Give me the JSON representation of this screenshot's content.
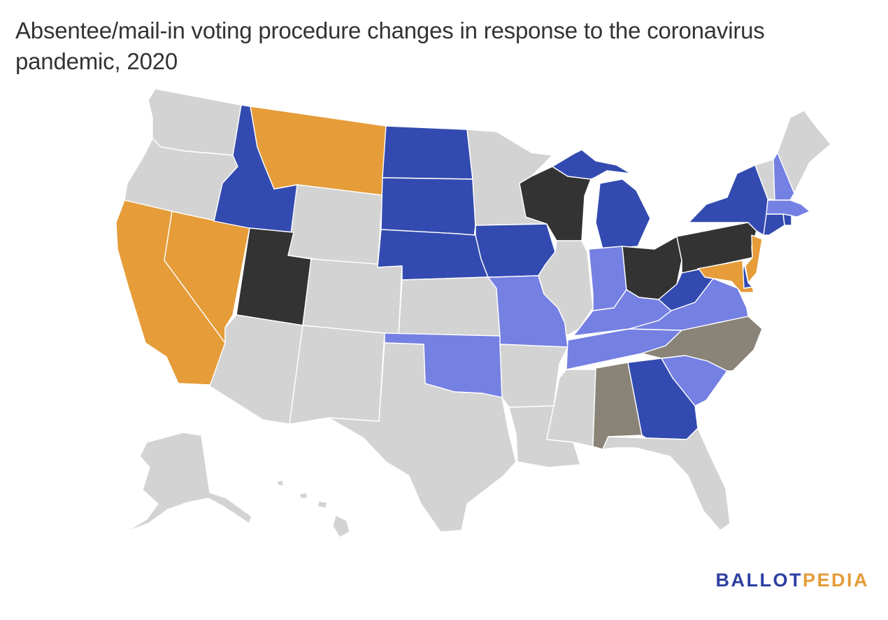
{
  "title": "Absentee/mail-in voting procedure changes in response to the coronavirus pandemic, 2020",
  "logo": {
    "part1": "BALLOT",
    "part2": "PEDIA"
  },
  "colors": {
    "none": "#d3d3d3",
    "orange": "#e59c39",
    "dark_blue": "#334bb0",
    "light_blue": "#7580e3",
    "black": "#333333",
    "taupe": "#8a8378"
  },
  "states": [
    {
      "abbr": "WA",
      "category": "none"
    },
    {
      "abbr": "OR",
      "category": "none"
    },
    {
      "abbr": "CA",
      "category": "orange"
    },
    {
      "abbr": "NV",
      "category": "orange"
    },
    {
      "abbr": "ID",
      "category": "dark_blue"
    },
    {
      "abbr": "MT",
      "category": "orange"
    },
    {
      "abbr": "WY",
      "category": "none"
    },
    {
      "abbr": "UT",
      "category": "black"
    },
    {
      "abbr": "AZ",
      "category": "none"
    },
    {
      "abbr": "CO",
      "category": "none"
    },
    {
      "abbr": "NM",
      "category": "none"
    },
    {
      "abbr": "ND",
      "category": "dark_blue"
    },
    {
      "abbr": "SD",
      "category": "dark_blue"
    },
    {
      "abbr": "NE",
      "category": "dark_blue"
    },
    {
      "abbr": "KS",
      "category": "none"
    },
    {
      "abbr": "OK",
      "category": "light_blue"
    },
    {
      "abbr": "TX",
      "category": "none"
    },
    {
      "abbr": "MN",
      "category": "none"
    },
    {
      "abbr": "IA",
      "category": "dark_blue"
    },
    {
      "abbr": "MO",
      "category": "light_blue"
    },
    {
      "abbr": "AR",
      "category": "none"
    },
    {
      "abbr": "LA",
      "category": "none"
    },
    {
      "abbr": "WI",
      "category": "black"
    },
    {
      "abbr": "IL",
      "category": "none"
    },
    {
      "abbr": "MI",
      "category": "dark_blue"
    },
    {
      "abbr": "IN",
      "category": "light_blue"
    },
    {
      "abbr": "OH",
      "category": "black"
    },
    {
      "abbr": "KY",
      "category": "light_blue"
    },
    {
      "abbr": "TN",
      "category": "light_blue"
    },
    {
      "abbr": "MS",
      "category": "none"
    },
    {
      "abbr": "AL",
      "category": "taupe"
    },
    {
      "abbr": "GA",
      "category": "dark_blue"
    },
    {
      "abbr": "FL",
      "category": "none"
    },
    {
      "abbr": "SC",
      "category": "light_blue"
    },
    {
      "abbr": "NC",
      "category": "taupe"
    },
    {
      "abbr": "VA",
      "category": "light_blue"
    },
    {
      "abbr": "WV",
      "category": "dark_blue"
    },
    {
      "abbr": "PA",
      "category": "black"
    },
    {
      "abbr": "NY",
      "category": "dark_blue"
    },
    {
      "abbr": "VT",
      "category": "none"
    },
    {
      "abbr": "NH",
      "category": "light_blue"
    },
    {
      "abbr": "ME",
      "category": "none"
    },
    {
      "abbr": "MA",
      "category": "light_blue"
    },
    {
      "abbr": "RI",
      "category": "dark_blue"
    },
    {
      "abbr": "CT",
      "category": "dark_blue"
    },
    {
      "abbr": "NJ",
      "category": "orange"
    },
    {
      "abbr": "DE",
      "category": "dark_blue"
    },
    {
      "abbr": "MD",
      "category": "orange"
    },
    {
      "abbr": "AK",
      "category": "none"
    },
    {
      "abbr": "HI",
      "category": "none"
    }
  ]
}
